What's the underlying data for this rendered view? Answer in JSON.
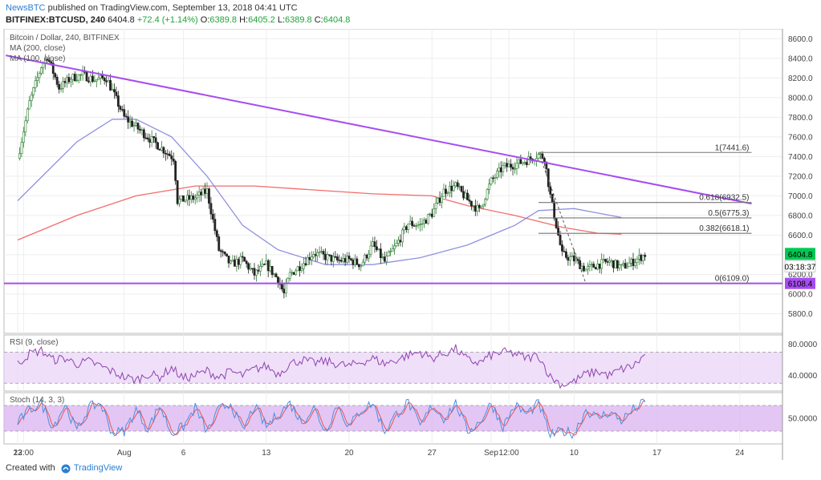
{
  "header": {
    "publisher": "NewsBTC",
    "published_text": "published on TradingView.com, September 13, 2018 04:41 UTC",
    "symbol": "BITFINEX:BTCUSD, 240",
    "last": "6404.8",
    "change": "+72.4 (+1.14%)",
    "o_label": "O:",
    "o": "6389.8",
    "h_label": "H:",
    "h": "6405.2",
    "l_label": "L:",
    "l": "6389.8",
    "c_label": "C:",
    "c": "6404.8"
  },
  "footer": {
    "created_with": "Created with",
    "brand": "TradingView"
  },
  "colors": {
    "up": "#2e7d32",
    "down": "#222222",
    "trendline": "#a64cf0",
    "ma200": "#ef5350",
    "ma100": "#7e7ed8",
    "rsi_line": "#8e44ad",
    "rsi_band": "#ead4f7",
    "stoch_k": "#4a90e2",
    "stoch_d": "#ef5350",
    "stoch_band": "#d9b3f0",
    "price_badge": "#00c853",
    "support_badge": "#a64cf0"
  },
  "chart_data": [
    {
      "type": "candlestick",
      "title": "Bitcoin / Dollar, 240, BITFINEX",
      "legend": [
        "MA (200, close)",
        "MA (100, close)"
      ],
      "x_ticks": [
        "23",
        "12:00",
        "Aug",
        "6",
        "13",
        "20",
        "27",
        "Sep",
        "12:00",
        "10",
        "17",
        "24"
      ],
      "x_tick_day": [
        0,
        0.5,
        9,
        14,
        21,
        28,
        35,
        40,
        41.5,
        47,
        54,
        61
      ],
      "ylim": [
        5600,
        8700
      ],
      "y_ticks": [
        5800,
        6000,
        6200,
        6400,
        6600,
        6800,
        7000,
        7200,
        7400,
        7600,
        7800,
        8000,
        8200,
        8400,
        8600
      ],
      "price_path": [
        [
          0,
          7380
        ],
        [
          1,
          7950
        ],
        [
          2,
          8320
        ],
        [
          2.5,
          8420
        ],
        [
          3.5,
          8100
        ],
        [
          4.5,
          8200
        ],
        [
          5.5,
          8230
        ],
        [
          6.5,
          8180
        ],
        [
          7.5,
          8200
        ],
        [
          9,
          7800
        ],
        [
          10.5,
          7650
        ],
        [
          12,
          7500
        ],
        [
          13.2,
          7380
        ],
        [
          13.5,
          6950
        ],
        [
          15,
          6980
        ],
        [
          16,
          7050
        ],
        [
          16.5,
          6750
        ],
        [
          17,
          6450
        ],
        [
          18,
          6300
        ],
        [
          19,
          6350
        ],
        [
          20,
          6200
        ],
        [
          21,
          6300
        ],
        [
          22,
          6150
        ],
        [
          22.5,
          6000
        ],
        [
          23,
          6200
        ],
        [
          24,
          6300
        ],
        [
          25,
          6420
        ],
        [
          26,
          6380
        ],
        [
          27,
          6340
        ],
        [
          28,
          6350
        ],
        [
          29,
          6300
        ],
        [
          30,
          6500
        ],
        [
          31,
          6330
        ],
        [
          32,
          6500
        ],
        [
          33,
          6720
        ],
        [
          34,
          6700
        ],
        [
          35,
          6820
        ],
        [
          36,
          7050
        ],
        [
          37,
          7100
        ],
        [
          38,
          6960
        ],
        [
          39,
          6850
        ],
        [
          40,
          7150
        ],
        [
          41,
          7290
        ],
        [
          42,
          7320
        ],
        [
          43,
          7360
        ],
        [
          44,
          7420
        ],
        [
          44.5,
          7390
        ],
        [
          45,
          7000
        ],
        [
          45.5,
          6700
        ],
        [
          46,
          6400
        ],
        [
          47,
          6350
        ],
        [
          48,
          6250
        ],
        [
          49,
          6300
        ],
        [
          50,
          6330
        ],
        [
          51,
          6270
        ],
        [
          52,
          6330
        ],
        [
          53,
          6404.8
        ]
      ],
      "ma100_path": [
        [
          0,
          6950
        ],
        [
          5,
          7550
        ],
        [
          8,
          7780
        ],
        [
          10,
          7780
        ],
        [
          13,
          7600
        ],
        [
          16,
          7200
        ],
        [
          19,
          6700
        ],
        [
          22,
          6450
        ],
        [
          26,
          6300
        ],
        [
          30,
          6300
        ],
        [
          34,
          6370
        ],
        [
          38,
          6500
        ],
        [
          42,
          6700
        ],
        [
          44,
          6850
        ],
        [
          47,
          6870
        ],
        [
          51,
          6780
        ]
      ],
      "ma200_path": [
        [
          0,
          6550
        ],
        [
          5,
          6800
        ],
        [
          10,
          7000
        ],
        [
          15,
          7100
        ],
        [
          20,
          7100
        ],
        [
          25,
          7060
        ],
        [
          30,
          7020
        ],
        [
          35,
          7000
        ],
        [
          38,
          6900
        ],
        [
          42,
          6800
        ],
        [
          46,
          6680
        ],
        [
          49,
          6620
        ],
        [
          51,
          6610
        ]
      ],
      "trendline": {
        "from": [
          -1,
          8430
        ],
        "to": [
          62,
          6920
        ]
      },
      "support_line": {
        "value": 6108.4,
        "label": "6108.4"
      },
      "current_price": {
        "value": 6404.8,
        "label": "6404.8",
        "countdown": "03:18:37"
      },
      "fibonacci": {
        "from_day": 44,
        "to_day": 62,
        "swing_from_day": 44,
        "swing_to_day": 48,
        "levels": [
          {
            "label": "1(7441.6)",
            "value": 7441.6
          },
          {
            "label": "0.618(6932.5)",
            "value": 6932.5
          },
          {
            "label": "0.5(6775.3)",
            "value": 6775.3
          },
          {
            "label": "0.382(6618.1)",
            "value": 6618.1
          },
          {
            "label": "0(6109.0)",
            "value": 6109.0
          }
        ]
      }
    },
    {
      "type": "line",
      "title": "RSI (9, close)",
      "ylim": [
        20,
        92
      ],
      "y_ticks": [
        40,
        80
      ],
      "y_tick_labels": [
        "40.0000",
        "80.0000"
      ],
      "band": [
        30,
        70
      ],
      "values_by_day": [
        [
          0,
          55
        ],
        [
          1,
          68
        ],
        [
          2,
          72
        ],
        [
          3,
          60
        ],
        [
          4,
          62
        ],
        [
          5,
          55
        ],
        [
          6,
          58
        ],
        [
          7,
          52
        ],
        [
          8,
          45
        ],
        [
          9,
          38
        ],
        [
          10,
          34
        ],
        [
          11,
          42
        ],
        [
          12,
          38
        ],
        [
          13,
          50
        ],
        [
          14,
          36
        ],
        [
          15,
          40
        ],
        [
          16,
          46
        ],
        [
          17,
          38
        ],
        [
          18,
          45
        ],
        [
          19,
          40
        ],
        [
          20,
          48
        ],
        [
          21,
          52
        ],
        [
          22,
          42
        ],
        [
          23,
          55
        ],
        [
          24,
          60
        ],
        [
          25,
          56
        ],
        [
          26,
          58
        ],
        [
          27,
          55
        ],
        [
          28,
          52
        ],
        [
          29,
          57
        ],
        [
          30,
          62
        ],
        [
          31,
          55
        ],
        [
          32,
          60
        ],
        [
          33,
          66
        ],
        [
          34,
          70
        ],
        [
          35,
          62
        ],
        [
          36,
          68
        ],
        [
          37,
          74
        ],
        [
          38,
          60
        ],
        [
          39,
          56
        ],
        [
          40,
          66
        ],
        [
          41,
          70
        ],
        [
          42,
          68
        ],
        [
          43,
          62
        ],
        [
          44,
          66
        ],
        [
          45,
          38
        ],
        [
          46,
          28
        ],
        [
          47,
          32
        ],
        [
          48,
          42
        ],
        [
          49,
          45
        ],
        [
          50,
          40
        ],
        [
          51,
          48
        ],
        [
          52,
          52
        ],
        [
          53,
          66
        ]
      ]
    },
    {
      "type": "line",
      "title": "Stoch (14, 3, 3)",
      "ylim": [
        -10,
        110
      ],
      "y_ticks": [
        50
      ],
      "y_tick_labels": [
        "50.0000"
      ],
      "band": [
        20,
        80
      ],
      "k_by_day": [
        [
          0,
          40
        ],
        [
          1,
          70
        ],
        [
          2,
          85
        ],
        [
          3,
          30
        ],
        [
          4,
          82
        ],
        [
          5,
          20
        ],
        [
          6,
          75
        ],
        [
          7,
          85
        ],
        [
          8,
          15
        ],
        [
          9,
          20
        ],
        [
          10,
          70
        ],
        [
          11,
          25
        ],
        [
          12,
          80
        ],
        [
          13,
          15
        ],
        [
          14,
          30
        ],
        [
          15,
          75
        ],
        [
          16,
          18
        ],
        [
          17,
          70
        ],
        [
          18,
          85
        ],
        [
          19,
          20
        ],
        [
          20,
          78
        ],
        [
          21,
          30
        ],
        [
          22,
          60
        ],
        [
          23,
          85
        ],
        [
          24,
          40
        ],
        [
          25,
          75
        ],
        [
          26,
          20
        ],
        [
          27,
          82
        ],
        [
          28,
          30
        ],
        [
          29,
          70
        ],
        [
          30,
          85
        ],
        [
          31,
          20
        ],
        [
          32,
          60
        ],
        [
          33,
          88
        ],
        [
          34,
          30
        ],
        [
          35,
          80
        ],
        [
          36,
          50
        ],
        [
          37,
          85
        ],
        [
          38,
          20
        ],
        [
          39,
          40
        ],
        [
          40,
          85
        ],
        [
          41,
          30
        ],
        [
          42,
          80
        ],
        [
          43,
          60
        ],
        [
          44,
          85
        ],
        [
          45,
          10
        ],
        [
          46,
          20
        ],
        [
          47,
          15
        ],
        [
          48,
          70
        ],
        [
          49,
          50
        ],
        [
          50,
          65
        ],
        [
          51,
          45
        ],
        [
          52,
          70
        ],
        [
          53,
          88
        ]
      ]
    }
  ]
}
